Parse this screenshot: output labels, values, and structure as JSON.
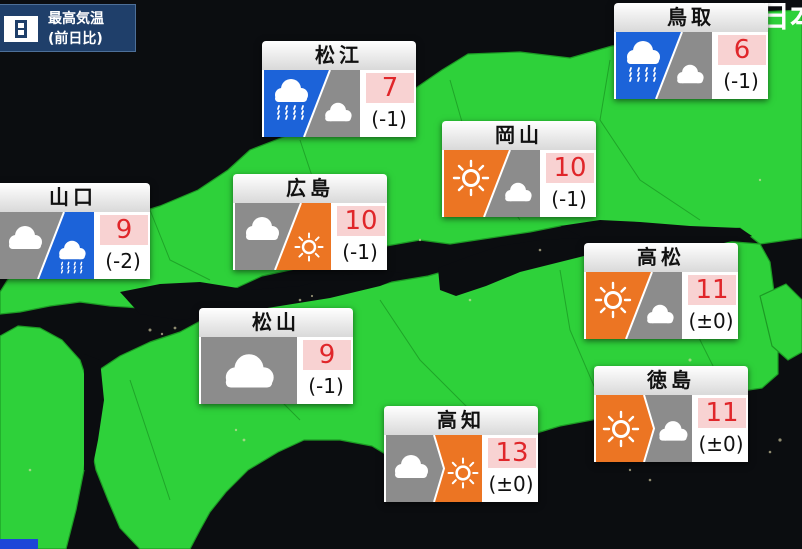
{
  "header": {
    "line1": "最高気温",
    "line2": "(前日比)"
  },
  "corner_text": "日本",
  "colors": {
    "sea": "#0b0d10",
    "land": "#2ed13a",
    "sunny": "#ec7523",
    "cloudy": "#8c8c8c",
    "rain": "#1c63d9",
    "temp_bg": "#f8d2d2",
    "temp_text": "#e0262a"
  },
  "cities": [
    {
      "name": "鳥取",
      "morning": "rain-icon",
      "afternoon": "cloud-icon",
      "transition": "diagonal",
      "temp": "6",
      "diff": "(-1)"
    },
    {
      "name": "松江",
      "morning": "rain-icon",
      "afternoon": "cloud-icon",
      "transition": "diagonal",
      "temp": "7",
      "diff": "(-1)"
    },
    {
      "name": "岡山",
      "morning": "sun-icon",
      "afternoon": "cloud-icon",
      "transition": "diagonal",
      "temp": "10",
      "diff": "(-1)"
    },
    {
      "name": "山口",
      "morning": "cloud-icon",
      "afternoon": "rain-icon",
      "transition": "diagonal",
      "temp": "9",
      "diff": "(-2)"
    },
    {
      "name": "広島",
      "morning": "cloud-icon",
      "afternoon": "sun-icon",
      "transition": "diagonal",
      "temp": "10",
      "diff": "(-1)"
    },
    {
      "name": "高松",
      "morning": "sun-icon",
      "afternoon": "cloud-icon",
      "transition": "diagonal",
      "temp": "11",
      "diff": "(±0)"
    },
    {
      "name": "松山",
      "morning": "cloud-icon",
      "afternoon": "cloud-icon",
      "transition": "none",
      "temp": "9",
      "diff": "(-1)"
    },
    {
      "name": "徳島",
      "morning": "sun-icon",
      "afternoon": "cloud-icon",
      "transition": "arrow",
      "temp": "11",
      "diff": "(±0)"
    },
    {
      "name": "高知",
      "morning": "cloud-icon",
      "afternoon": "sun-icon",
      "transition": "arrow",
      "temp": "13",
      "diff": "(±0)"
    }
  ]
}
